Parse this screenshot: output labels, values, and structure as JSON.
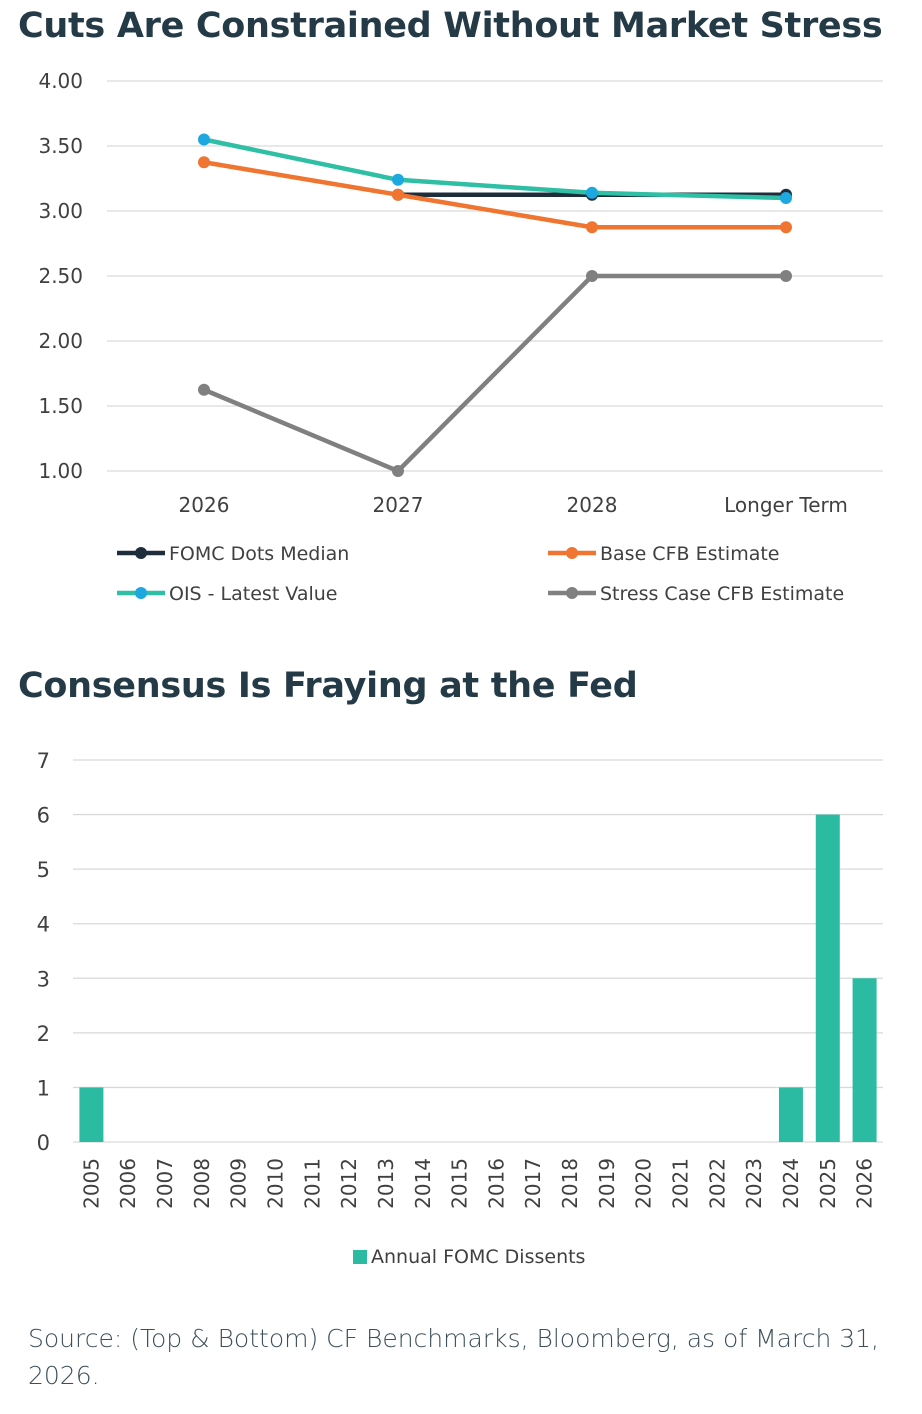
{
  "chart_data": [
    {
      "type": "line",
      "title": "Cuts Are Constrained Without Market Stress",
      "categories": [
        "2026",
        "2027",
        "2028",
        "Longer Term"
      ],
      "ylim": [
        1.0,
        4.0
      ],
      "yticks": [
        "1.00",
        "1.50",
        "2.00",
        "2.50",
        "3.00",
        "3.50",
        "4.00"
      ],
      "series": [
        {
          "name": "FOMC Dots Median",
          "values": [
            null,
            3.125,
            3.125,
            3.125
          ],
          "color": "#1d2d3c",
          "marker_color": "#1d2d3c"
        },
        {
          "name": "Base CFB Estimate",
          "values": [
            3.375,
            3.125,
            2.875,
            2.875
          ],
          "color": "#ef7530",
          "marker_color": "#ef7530"
        },
        {
          "name": "OIS - Latest Value",
          "values": [
            3.55,
            3.24,
            3.14,
            3.1
          ],
          "color": "#2ebfa5",
          "marker_color": "#1ea8e0"
        },
        {
          "name": "Stress Case CFB Estimate",
          "values": [
            1.625,
            1.0,
            2.5,
            2.5
          ],
          "color": "#808080",
          "marker_color": "#808080"
        }
      ],
      "legend": "bottom"
    },
    {
      "type": "bar",
      "title": "Consensus Is Fraying at the Fed",
      "categories": [
        "2005",
        "2006",
        "2007",
        "2008",
        "2009",
        "2010",
        "2011",
        "2012",
        "2013",
        "2014",
        "2015",
        "2016",
        "2017",
        "2018",
        "2019",
        "2020",
        "2021",
        "2022",
        "2023",
        "2024",
        "2025",
        "2026"
      ],
      "values": [
        1,
        0,
        0,
        0,
        0,
        0,
        0,
        0,
        0,
        0,
        0,
        0,
        0,
        0,
        0,
        0,
        0,
        0,
        0,
        1,
        6,
        3
      ],
      "ylim": [
        0,
        7
      ],
      "yticks": [
        "0",
        "1",
        "2",
        "3",
        "4",
        "5",
        "6",
        "7"
      ],
      "series_name": "Annual FOMC Dissents",
      "color": "#2bbba3",
      "legend": "bottom"
    }
  ],
  "source": "Source: (Top & Bottom) CF Benchmarks, Bloomberg, as of March 31, 2026."
}
